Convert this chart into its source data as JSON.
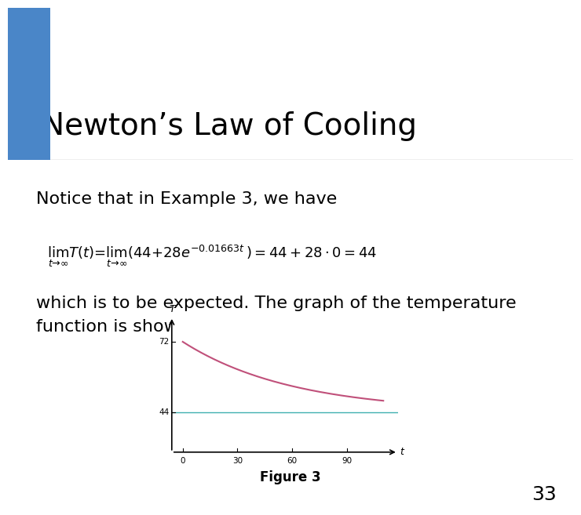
{
  "title": "Newton’s Law of Cooling",
  "title_bg_color": "#f5e6c8",
  "title_text_color": "#000000",
  "title_box_color": "#4a86c8",
  "slide_bg_color": "#ffffff",
  "body_text1": "Notice that in Example 3, we have",
  "body_text2": "which is to be expected. The graph of the temperature\nfunction is shown in Figure 3.",
  "figure_caption": "Figure 3",
  "page_number": "33",
  "curve_color": "#c0507a",
  "asymptote_color": "#40b0b0",
  "T0": 72,
  "Ts": 44,
  "k": 0.01663,
  "t_max": 110,
  "y_ticks": [
    44,
    72
  ],
  "x_ticks": [
    0,
    30,
    60,
    90
  ],
  "x_label": "t",
  "y_label": "T",
  "font_size_title": 28,
  "font_size_body": 16,
  "font_size_caption": 12,
  "font_size_page": 18
}
